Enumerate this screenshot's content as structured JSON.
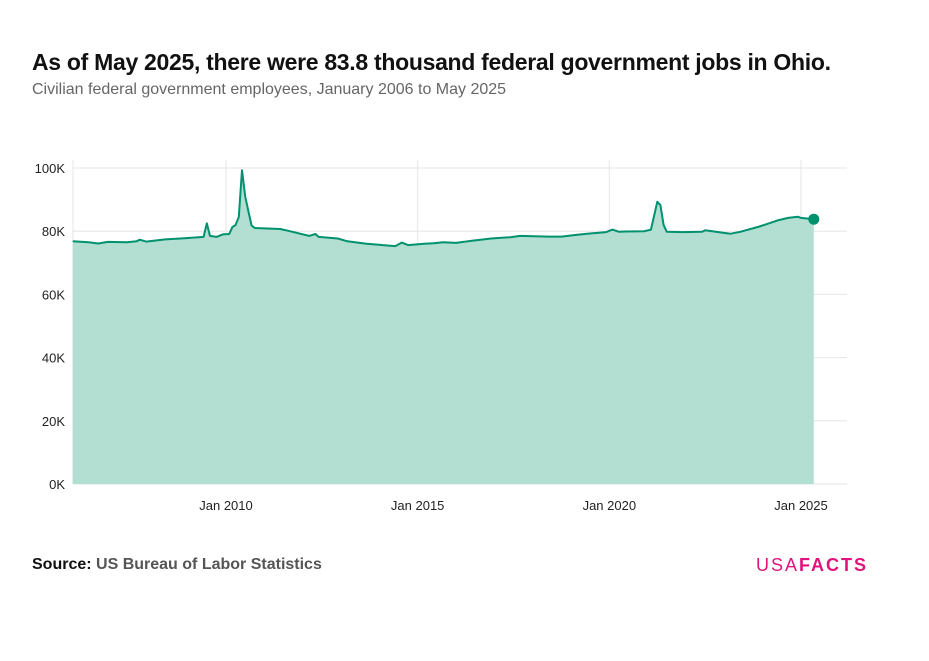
{
  "title": "As of May 2025, there were 83.8 thousand federal government jobs in Ohio.",
  "subtitle": "Civilian federal government employees, January 2006 to May 2025",
  "source_label": "Source:",
  "source_text": "US Bureau of Labor Statistics",
  "logo": {
    "light": "USA",
    "bold": "FACTS"
  },
  "colors": {
    "line": "#00916e",
    "area": "#b3ded2",
    "grid": "#e6e6e6",
    "brand": "#e0137d"
  },
  "chart_data": {
    "type": "area",
    "title": "As of May 2025, there were 83.8 thousand federal government jobs in Ohio.",
    "subtitle": "Civilian federal government employees, January 2006 to May 2025",
    "xlabel": "",
    "ylabel": "",
    "x_range": [
      "2006-01",
      "2025-05"
    ],
    "ylim": [
      0,
      100000
    ],
    "y_ticks": [
      0,
      20000,
      40000,
      60000,
      80000,
      100000
    ],
    "y_tick_labels": [
      "0K",
      "20K",
      "40K",
      "60K",
      "80K",
      "100K"
    ],
    "x_ticks": [
      "2010-01",
      "2015-01",
      "2020-01",
      "2025-01"
    ],
    "x_tick_labels": [
      "Jan 2010",
      "Jan 2015",
      "Jan 2020",
      "Jan 2025"
    ],
    "grid": true,
    "legend": "none",
    "last_point_marker": true,
    "series": [
      {
        "points": [
          [
            "2006-01",
            76800
          ],
          [
            "2006-06",
            76500
          ],
          [
            "2006-09",
            76100
          ],
          [
            "2006-12",
            76600
          ],
          [
            "2007-06",
            76500
          ],
          [
            "2007-09",
            76800
          ],
          [
            "2007-10",
            77300
          ],
          [
            "2007-12",
            76700
          ],
          [
            "2008-06",
            77400
          ],
          [
            "2008-12",
            77800
          ],
          [
            "2009-06",
            78200
          ],
          [
            "2009-07",
            82500
          ],
          [
            "2009-08",
            78500
          ],
          [
            "2009-10",
            78200
          ],
          [
            "2009-12",
            79000
          ],
          [
            "2010-02",
            79100
          ],
          [
            "2010-03",
            81300
          ],
          [
            "2010-04",
            82000
          ],
          [
            "2010-05",
            84500
          ],
          [
            "2010-06",
            99300
          ],
          [
            "2010-07",
            91000
          ],
          [
            "2010-08",
            86300
          ],
          [
            "2010-09",
            81800
          ],
          [
            "2010-10",
            81000
          ],
          [
            "2011-06",
            80700
          ],
          [
            "2011-09",
            80000
          ],
          [
            "2012-03",
            78500
          ],
          [
            "2012-05",
            79100
          ],
          [
            "2012-06",
            78200
          ],
          [
            "2012-12",
            77700
          ],
          [
            "2013-03",
            76800
          ],
          [
            "2013-09",
            76000
          ],
          [
            "2014-06",
            75300
          ],
          [
            "2014-08",
            76400
          ],
          [
            "2014-10",
            75600
          ],
          [
            "2015-03",
            76000
          ],
          [
            "2015-06",
            76200
          ],
          [
            "2015-09",
            76500
          ],
          [
            "2016-01",
            76300
          ],
          [
            "2016-06",
            77000
          ],
          [
            "2016-12",
            77700
          ],
          [
            "2017-06",
            78100
          ],
          [
            "2017-09",
            78500
          ],
          [
            "2018-06",
            78300
          ],
          [
            "2018-10",
            78300
          ],
          [
            "2019-03",
            78900
          ],
          [
            "2019-06",
            79200
          ],
          [
            "2019-12",
            79700
          ],
          [
            "2020-02",
            80500
          ],
          [
            "2020-04",
            79800
          ],
          [
            "2020-06",
            79900
          ],
          [
            "2020-12",
            80000
          ],
          [
            "2021-02",
            80500
          ],
          [
            "2021-04",
            89300
          ],
          [
            "2021-05",
            88300
          ],
          [
            "2021-06",
            82000
          ],
          [
            "2021-07",
            79800
          ],
          [
            "2021-12",
            79700
          ],
          [
            "2022-06",
            79800
          ],
          [
            "2022-07",
            80300
          ],
          [
            "2022-12",
            79600
          ],
          [
            "2023-03",
            79200
          ],
          [
            "2023-06",
            79800
          ],
          [
            "2023-12",
            81500
          ],
          [
            "2024-03",
            82500
          ],
          [
            "2024-06",
            83500
          ],
          [
            "2024-09",
            84200
          ],
          [
            "2024-12",
            84600
          ],
          [
            "2025-01",
            84200
          ],
          [
            "2025-05",
            83800
          ]
        ]
      }
    ]
  }
}
